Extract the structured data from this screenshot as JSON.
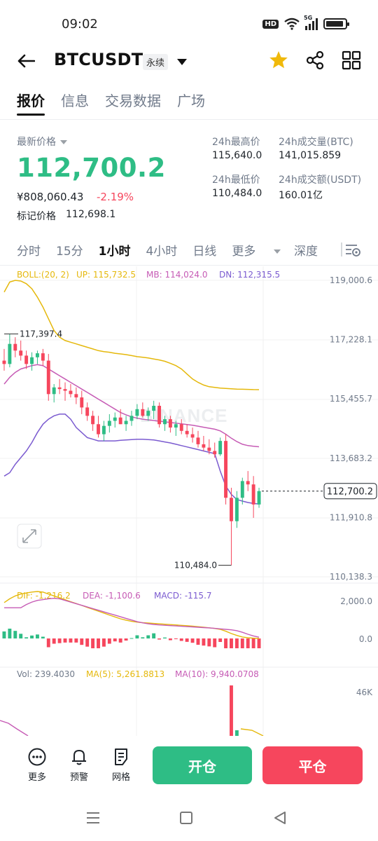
{
  "status": {
    "time": "09:02",
    "hd": "HD",
    "network": "5G"
  },
  "header": {
    "symbol": "BTCUSDT",
    "contract_type": "永续"
  },
  "tabs": [
    {
      "label": "报价",
      "active": true
    },
    {
      "label": "信息",
      "active": false
    },
    {
      "label": "交易数据",
      "active": false
    },
    {
      "label": "广场",
      "active": false
    }
  ],
  "ticker": {
    "latest_label": "最新价格",
    "last_price": "112,700.2",
    "cny_price": "¥808,060.43",
    "change_pct": "-2.19%",
    "mark_label": "标记价格",
    "mark_price": "112,698.1",
    "high_label": "24h最高价",
    "high_value": "115,640.0",
    "low_label": "24h最低价",
    "low_value": "110,484.0",
    "vol_btc_label": "24h成交量(BTC)",
    "vol_btc_value": "141,015.859",
    "vol_usdt_label": "24h成交额(USDT)",
    "vol_usdt_value": "160.01亿"
  },
  "intervals": [
    {
      "label": "分时",
      "active": false
    },
    {
      "label": "15分",
      "active": false
    },
    {
      "label": "1小时",
      "active": true
    },
    {
      "label": "4小时",
      "active": false
    },
    {
      "label": "日线",
      "active": false
    },
    {
      "label": "更多",
      "active": false
    }
  ],
  "depth_label": "深度",
  "chart_data": {
    "type": "candlestick",
    "watermark": "BINANCE",
    "boll": {
      "label": "BOLL:(20, 2)",
      "up": "UP: 115,732.5",
      "mb": "MB: 114,024.0",
      "dn": "DN: 112,315.5"
    },
    "price_axis": [
      "119,000.6",
      "117,228.1",
      "115,455.7",
      "113,683.2",
      "111,910.8",
      "110,138.3"
    ],
    "price_range": [
      110138.3,
      119000.6
    ],
    "high_marker": "117,397.4",
    "low_marker": "110,484.0",
    "current_price_tag": "112,700.2",
    "candles": [
      [
        116600,
        116950,
        116300,
        116500
      ],
      [
        116500,
        117397.4,
        116400,
        117100
      ],
      [
        117100,
        117300,
        116700,
        116900
      ],
      [
        116900,
        117200,
        116600,
        116750
      ],
      [
        116750,
        116900,
        116350,
        116500
      ],
      [
        116500,
        116850,
        116300,
        116700
      ],
      [
        116700,
        116900,
        116500,
        116820
      ],
      [
        116820,
        116950,
        116450,
        116600
      ],
      [
        116600,
        116800,
        115400,
        115600
      ],
      [
        115600,
        115900,
        115350,
        115800
      ],
      [
        115800,
        116050,
        115600,
        115750
      ],
      [
        115750,
        115950,
        115400,
        115700
      ],
      [
        115700,
        115900,
        115500,
        115600
      ],
      [
        115600,
        115800,
        115300,
        115500
      ],
      [
        115500,
        115700,
        115000,
        115200
      ],
      [
        115200,
        115350,
        114800,
        114950
      ],
      [
        114950,
        115100,
        114500,
        114700
      ],
      [
        114700,
        114950,
        114300,
        114400
      ],
      [
        114400,
        114800,
        114200,
        114650
      ],
      [
        114650,
        115000,
        114450,
        114800
      ],
      [
        114800,
        115050,
        114600,
        114900
      ],
      [
        114900,
        115150,
        114700,
        114700
      ],
      [
        114700,
        114950,
        114500,
        114800
      ],
      [
        114800,
        115100,
        114650,
        114950
      ],
      [
        114950,
        115300,
        114850,
        115150
      ],
      [
        115150,
        115350,
        114900,
        114950
      ],
      [
        114950,
        115200,
        114800,
        115100
      ],
      [
        115100,
        115400,
        114850,
        115250
      ],
      [
        115250,
        115350,
        114600,
        114700
      ],
      [
        114700,
        114950,
        114500,
        114850
      ],
      [
        114850,
        114950,
        114450,
        114600
      ],
      [
        114600,
        114800,
        114350,
        114700
      ],
      [
        114700,
        114850,
        114400,
        114500
      ],
      [
        114500,
        114700,
        114300,
        114400
      ],
      [
        114400,
        114600,
        114150,
        114300
      ],
      [
        114300,
        114500,
        114000,
        114100
      ],
      [
        114100,
        114350,
        113900,
        114000
      ],
      [
        114000,
        114250,
        113800,
        113900
      ],
      [
        113900,
        114150,
        113700,
        113800
      ],
      [
        113800,
        114300,
        113750,
        114200
      ],
      [
        114200,
        114400,
        112300,
        112500
      ],
      [
        112500,
        112800,
        110484.0,
        111800
      ],
      [
        111800,
        112700,
        111600,
        112500
      ],
      [
        112500,
        113100,
        112300,
        113000
      ],
      [
        113000,
        113300,
        112700,
        112900
      ],
      [
        112900,
        113150,
        111900,
        112300
      ],
      [
        112300,
        112800,
        112200,
        112700.2
      ]
    ],
    "boll_up": [
      118650,
      118950,
      119000,
      118980,
      118900,
      118750,
      118500,
      118200,
      117850,
      117500,
      117300,
      117200,
      117150,
      117100,
      117050,
      117000,
      116950,
      116900,
      116870,
      116850,
      116820,
      116800,
      116780,
      116750,
      116720,
      116700,
      116680,
      116650,
      116620,
      116580,
      116520,
      116450,
      116350,
      116200,
      116050,
      115950,
      115870,
      115820,
      115800,
      115780,
      115770,
      115760,
      115750,
      115745,
      115740,
      115735,
      115732.5
    ],
    "boll_mb": [
      115900,
      116100,
      116250,
      116350,
      116400,
      116450,
      116480,
      116450,
      116350,
      116250,
      116150,
      116050,
      115950,
      115850,
      115750,
      115650,
      115550,
      115450,
      115350,
      115250,
      115150,
      115050,
      114980,
      114920,
      114880,
      114850,
      114830,
      114810,
      114790,
      114770,
      114750,
      114730,
      114710,
      114690,
      114670,
      114640,
      114610,
      114580,
      114550,
      114500,
      114400,
      114280,
      114180,
      114100,
      114060,
      114040,
      114024.0
    ],
    "boll_dn": [
      113150,
      113250,
      113500,
      113700,
      113900,
      114150,
      114450,
      114700,
      114850,
      114950,
      115000,
      115000,
      114850,
      114600,
      114450,
      114300,
      114250,
      114200,
      114200,
      114200,
      114200,
      114220,
      114230,
      114240,
      114250,
      114250,
      114240,
      114230,
      114200,
      114170,
      114140,
      114100,
      114060,
      114020,
      113980,
      113940,
      113900,
      113860,
      113820,
      113300,
      112850,
      112600,
      112450,
      112400,
      112360,
      112330,
      112315.5
    ],
    "macd": {
      "dif_label": "DIF: -1,216.2",
      "dea_label": "DEA: -1,100.6",
      "macd_label": "MACD: -115.7",
      "axis": [
        "2,000.0",
        "0.0"
      ]
    },
    "volume": {
      "vol_label": "Vol: 239.4030",
      "ma5_label": "MA(5): 5,261.8813",
      "ma10_label": "MA(10): 9,940.0708",
      "axis": [
        "46K"
      ]
    }
  },
  "actions": {
    "more": "更多",
    "alert": "预警",
    "grid": "网格",
    "open": "开仓",
    "close": "平仓"
  },
  "colors": {
    "up": "#2ebd85",
    "down": "#f6465d",
    "boll_up": "#e5b80b",
    "boll_mb": "#c65bb5",
    "boll_dn": "#7b5bd0",
    "star": "#f0b90b"
  }
}
